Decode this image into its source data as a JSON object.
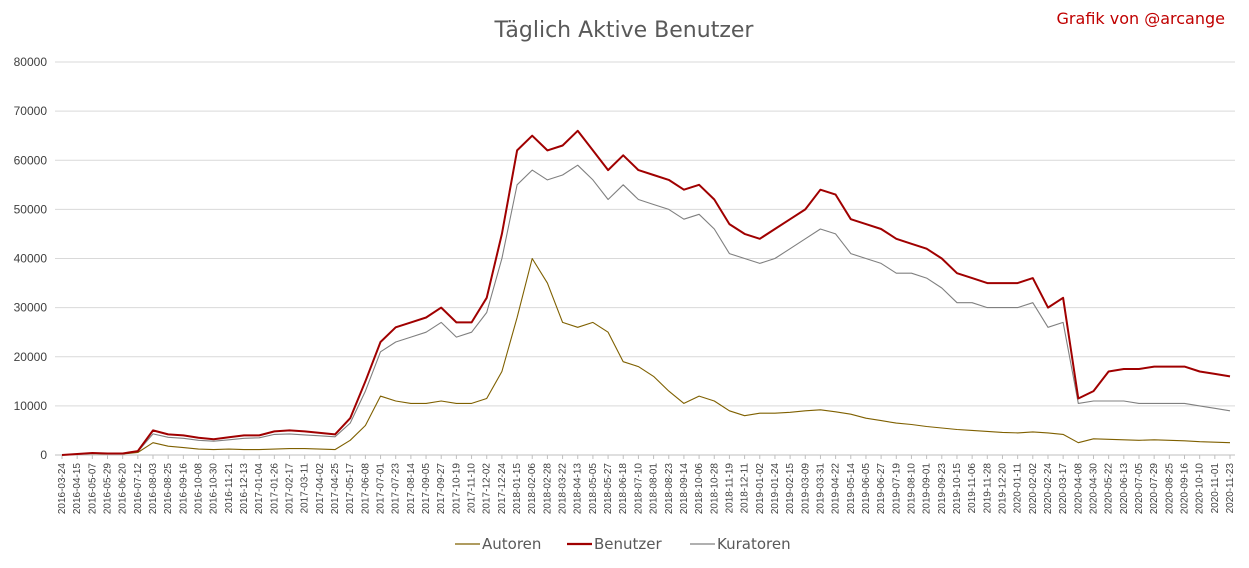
{
  "chart_data": {
    "type": "line",
    "title": "Täglich Aktive Benutzer",
    "credit": "Grafik von @arcange",
    "ylim": [
      0,
      80000
    ],
    "y_ticks": [
      0,
      10000,
      20000,
      30000,
      40000,
      50000,
      60000,
      70000,
      80000
    ],
    "x_ticks": [
      "2016-03-24",
      "2016-04-15",
      "2016-05-07",
      "2016-05-29",
      "2016-06-20",
      "2016-07-12",
      "2016-08-03",
      "2016-08-25",
      "2016-09-16",
      "2016-10-08",
      "2016-10-30",
      "2016-11-21",
      "2016-12-13",
      "2017-01-04",
      "2017-01-26",
      "2017-02-17",
      "2017-03-11",
      "2017-04-02",
      "2017-04-25",
      "2017-05-17",
      "2017-06-08",
      "2017-07-01",
      "2017-07-23",
      "2017-08-14",
      "2017-09-05",
      "2017-09-27",
      "2017-10-19",
      "2017-11-10",
      "2017-12-02",
      "2017-12-24",
      "2018-01-15",
      "2018-02-06",
      "2018-02-28",
      "2018-03-22",
      "2018-04-13",
      "2018-05-05",
      "2018-05-27",
      "2018-06-18",
      "2018-07-10",
      "2018-08-01",
      "2018-08-23",
      "2018-09-14",
      "2018-10-06",
      "2018-10-28",
      "2018-11-19",
      "2018-12-11",
      "2019-01-02",
      "2019-01-24",
      "2019-02-15",
      "2019-03-09",
      "2019-03-31",
      "2019-04-22",
      "2019-05-14",
      "2019-06-05",
      "2019-06-27",
      "2019-07-19",
      "2019-08-10",
      "2019-09-01",
      "2019-09-23",
      "2019-10-15",
      "2019-11-06",
      "2019-11-28",
      "2019-12-20",
      "2020-01-11",
      "2020-02-02",
      "2020-02-24",
      "2020-03-17",
      "2020-04-08",
      "2020-04-30",
      "2020-05-22",
      "2020-06-13",
      "2020-07-05",
      "2020-07-29",
      "2020-08-25",
      "2020-09-16",
      "2020-10-10",
      "2020-11-01",
      "2020-11-23"
    ],
    "series": [
      {
        "name": "Autoren",
        "color": "#7f6000",
        "values": [
          0,
          200,
          300,
          200,
          200,
          500,
          2500,
          1800,
          1500,
          1200,
          1100,
          1200,
          1100,
          1100,
          1200,
          1300,
          1300,
          1200,
          1100,
          3000,
          6000,
          12000,
          11000,
          10500,
          10500,
          11000,
          10500,
          10500,
          11500,
          17000,
          28000,
          40000,
          35000,
          27000,
          26000,
          27000,
          25000,
          19000,
          18000,
          16000,
          13000,
          10500,
          12000,
          11000,
          9000,
          8000,
          8500,
          8500,
          8700,
          9000,
          9200,
          8800,
          8300,
          7500,
          7000,
          6500,
          6200,
          5800,
          5500,
          5200,
          5000,
          4800,
          4600,
          4500,
          4700,
          4500,
          4200,
          2500,
          3300,
          3200,
          3100,
          3000,
          3100,
          3000,
          2900,
          2700,
          2600,
          2500
        ]
      },
      {
        "name": "Benutzer",
        "color": "#a00000",
        "values": [
          0,
          200,
          400,
          300,
          300,
          800,
          5000,
          4200,
          4000,
          3500,
          3200,
          3600,
          4000,
          4000,
          4800,
          5000,
          4800,
          4500,
          4200,
          7500,
          15000,
          23000,
          26000,
          27000,
          28000,
          30000,
          27000,
          27000,
          32000,
          45000,
          62000,
          65000,
          62000,
          63000,
          66000,
          62000,
          58000,
          61000,
          58000,
          57000,
          56000,
          54000,
          55000,
          52000,
          47000,
          45000,
          44000,
          46000,
          48000,
          50000,
          54000,
          53000,
          48000,
          47000,
          46000,
          44000,
          43000,
          42000,
          40000,
          37000,
          36000,
          35000,
          35000,
          35000,
          36000,
          30000,
          32000,
          11500,
          13000,
          17000,
          17500,
          17500,
          18000,
          18000,
          18000,
          17000,
          16500,
          16000
        ]
      },
      {
        "name": "Kuratoren",
        "color": "#808080",
        "values": [
          0,
          150,
          300,
          250,
          250,
          700,
          4300,
          3600,
          3400,
          3000,
          2800,
          3100,
          3400,
          3500,
          4200,
          4300,
          4100,
          3900,
          3700,
          6500,
          13000,
          21000,
          23000,
          24000,
          25000,
          27000,
          24000,
          25000,
          29000,
          40000,
          55000,
          58000,
          56000,
          57000,
          59000,
          56000,
          52000,
          55000,
          52000,
          51000,
          50000,
          48000,
          49000,
          46000,
          41000,
          40000,
          39000,
          40000,
          42000,
          44000,
          46000,
          45000,
          41000,
          40000,
          39000,
          37000,
          37000,
          36000,
          34000,
          31000,
          31000,
          30000,
          30000,
          30000,
          31000,
          26000,
          27000,
          10500,
          11000,
          11000,
          11000,
          10500,
          10500,
          10500,
          10500,
          10000,
          9500,
          9000
        ]
      }
    ],
    "legend_position": "bottom-center"
  }
}
